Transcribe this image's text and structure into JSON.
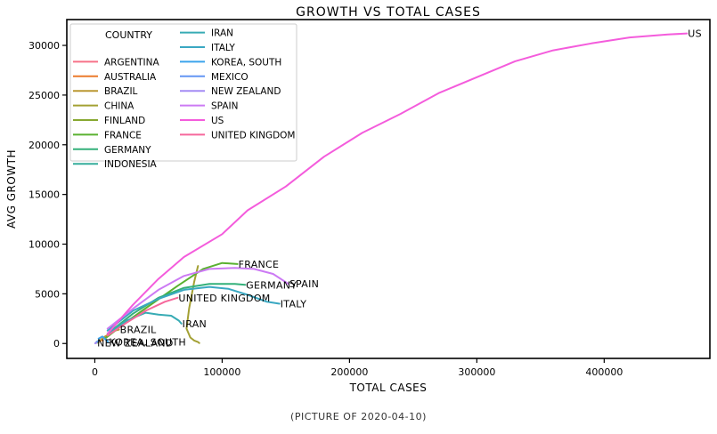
{
  "caption": "(PICTURE OF 2020-04-10)",
  "chart_data": {
    "type": "line",
    "title": "GROWTH VS TOTAL CASES",
    "xlabel": "TOTAL CASES",
    "ylabel": "AVG GROWTH",
    "xlim": [
      -22000,
      483000
    ],
    "ylim": [
      -1500,
      32600
    ],
    "xticks": [
      0,
      100000,
      200000,
      300000,
      400000
    ],
    "xtick_labels": [
      "0",
      "100000",
      "200000",
      "300000",
      "400000"
    ],
    "yticks": [
      0,
      5000,
      10000,
      15000,
      20000,
      25000,
      30000
    ],
    "ytick_labels": [
      "0",
      "5000",
      "10000",
      "15000",
      "20000",
      "25000",
      "30000"
    ],
    "grid": false,
    "legend": {
      "title": "COUNTRY",
      "placement": "top-left",
      "columns": 2
    },
    "series": [
      {
        "name": "ARGENTINA",
        "color": "#f77189",
        "label": "",
        "points": [
          [
            800,
            50
          ],
          [
            1200,
            110
          ],
          [
            1600,
            160
          ],
          [
            1900,
            200
          ]
        ]
      },
      {
        "name": "AUSTRALIA",
        "color": "#ec7a2b",
        "label": "",
        "points": [
          [
            3000,
            150
          ],
          [
            4500,
            280
          ],
          [
            5800,
            340
          ],
          [
            6200,
            330
          ]
        ]
      },
      {
        "name": "BRAZIL",
        "color": "#bb9832",
        "label": "BRAZIL",
        "points": [
          [
            4000,
            300
          ],
          [
            8000,
            700
          ],
          [
            12000,
            1000
          ],
          [
            16000,
            1300
          ],
          [
            19000,
            1400
          ]
        ]
      },
      {
        "name": "CHINA",
        "color": "#a3a033",
        "label": "",
        "points": [
          [
            81000,
            7800
          ],
          [
            78000,
            6200
          ],
          [
            74000,
            3500
          ],
          [
            72000,
            1500
          ],
          [
            75000,
            600
          ],
          [
            78000,
            300
          ],
          [
            81000,
            150
          ],
          [
            82000,
            50
          ]
        ]
      },
      {
        "name": "FINLAND",
        "color": "#87a831",
        "label": "",
        "points": [
          [
            1500,
            70
          ],
          [
            2200,
            90
          ],
          [
            2800,
            100
          ]
        ]
      },
      {
        "name": "FRANCE",
        "color": "#5ab131",
        "label": "FRANCE",
        "points": [
          [
            8000,
            500
          ],
          [
            25000,
            2200
          ],
          [
            45000,
            4000
          ],
          [
            65000,
            5800
          ],
          [
            85000,
            7500
          ],
          [
            100000,
            8100
          ],
          [
            112000,
            8000
          ]
        ]
      },
      {
        "name": "GERMANY",
        "color": "#33b07a",
        "label": "GERMANY",
        "points": [
          [
            10000,
            1000
          ],
          [
            30000,
            3000
          ],
          [
            50000,
            4600
          ],
          [
            70000,
            5600
          ],
          [
            90000,
            6000
          ],
          [
            110000,
            6000
          ],
          [
            118000,
            5900
          ]
        ]
      },
      {
        "name": "INDONESIA",
        "color": "#35ad9c",
        "label": "",
        "points": [
          [
            1000,
            100
          ],
          [
            2300,
            220
          ],
          [
            3300,
            300
          ]
        ]
      },
      {
        "name": "IRAN",
        "color": "#37abb4",
        "label": "IRAN",
        "points": [
          [
            10000,
            1000
          ],
          [
            25000,
            2300
          ],
          [
            40000,
            3100
          ],
          [
            50000,
            2900
          ],
          [
            60000,
            2800
          ],
          [
            66000,
            2300
          ],
          [
            68000,
            2000
          ]
        ]
      },
      {
        "name": "ITALY",
        "color": "#3aa8c2",
        "label": "ITALY",
        "points": [
          [
            10000,
            1300
          ],
          [
            30000,
            3300
          ],
          [
            50000,
            4500
          ],
          [
            70000,
            5400
          ],
          [
            90000,
            5700
          ],
          [
            105000,
            5500
          ],
          [
            120000,
            4900
          ],
          [
            135000,
            4200
          ],
          [
            145000,
            4000
          ]
        ]
      },
      {
        "name": "KOREA, SOUTH",
        "color": "#3ba3ec",
        "label": "KOREA, SOUTH",
        "points": [
          [
            3000,
            500
          ],
          [
            6000,
            700
          ],
          [
            8000,
            450
          ],
          [
            9500,
            300
          ],
          [
            10400,
            150
          ]
        ]
      },
      {
        "name": "MEXICO",
        "color": "#6496f4",
        "label": "",
        "points": [
          [
            600,
            50
          ],
          [
            1500,
            150
          ],
          [
            2800,
            220
          ],
          [
            3400,
            260
          ]
        ]
      },
      {
        "name": "NEW ZEALAND",
        "color": "#a48cf4",
        "label": "NEW ZEALAND",
        "points": [
          [
            300,
            20
          ],
          [
            700,
            50
          ],
          [
            1000,
            60
          ],
          [
            1200,
            55
          ]
        ]
      },
      {
        "name": "SPAIN",
        "color": "#cc7af4",
        "label": "SPAIN",
        "points": [
          [
            10000,
            1500
          ],
          [
            30000,
            3500
          ],
          [
            50000,
            5400
          ],
          [
            70000,
            6800
          ],
          [
            90000,
            7500
          ],
          [
            110000,
            7600
          ],
          [
            125000,
            7500
          ],
          [
            140000,
            7000
          ],
          [
            152000,
            6000
          ]
        ]
      },
      {
        "name": "US",
        "color": "#f45cdc",
        "label": "US",
        "points": [
          [
            10000,
            1000
          ],
          [
            30000,
            3900
          ],
          [
            50000,
            6500
          ],
          [
            70000,
            8700
          ],
          [
            100000,
            11000
          ],
          [
            120000,
            13400
          ],
          [
            150000,
            15800
          ],
          [
            180000,
            18800
          ],
          [
            210000,
            21200
          ],
          [
            240000,
            23100
          ],
          [
            270000,
            25200
          ],
          [
            300000,
            26800
          ],
          [
            330000,
            28400
          ],
          [
            360000,
            29500
          ],
          [
            390000,
            30200
          ],
          [
            420000,
            30800
          ],
          [
            450000,
            31100
          ],
          [
            465000,
            31200
          ]
        ]
      },
      {
        "name": "UNITED KINGDOM",
        "color": "#f6689c",
        "label": "UNITED KINGDOM",
        "points": [
          [
            10000,
            800
          ],
          [
            25000,
            2100
          ],
          [
            40000,
            3300
          ],
          [
            55000,
            4200
          ],
          [
            65000,
            4600
          ]
        ]
      }
    ]
  }
}
